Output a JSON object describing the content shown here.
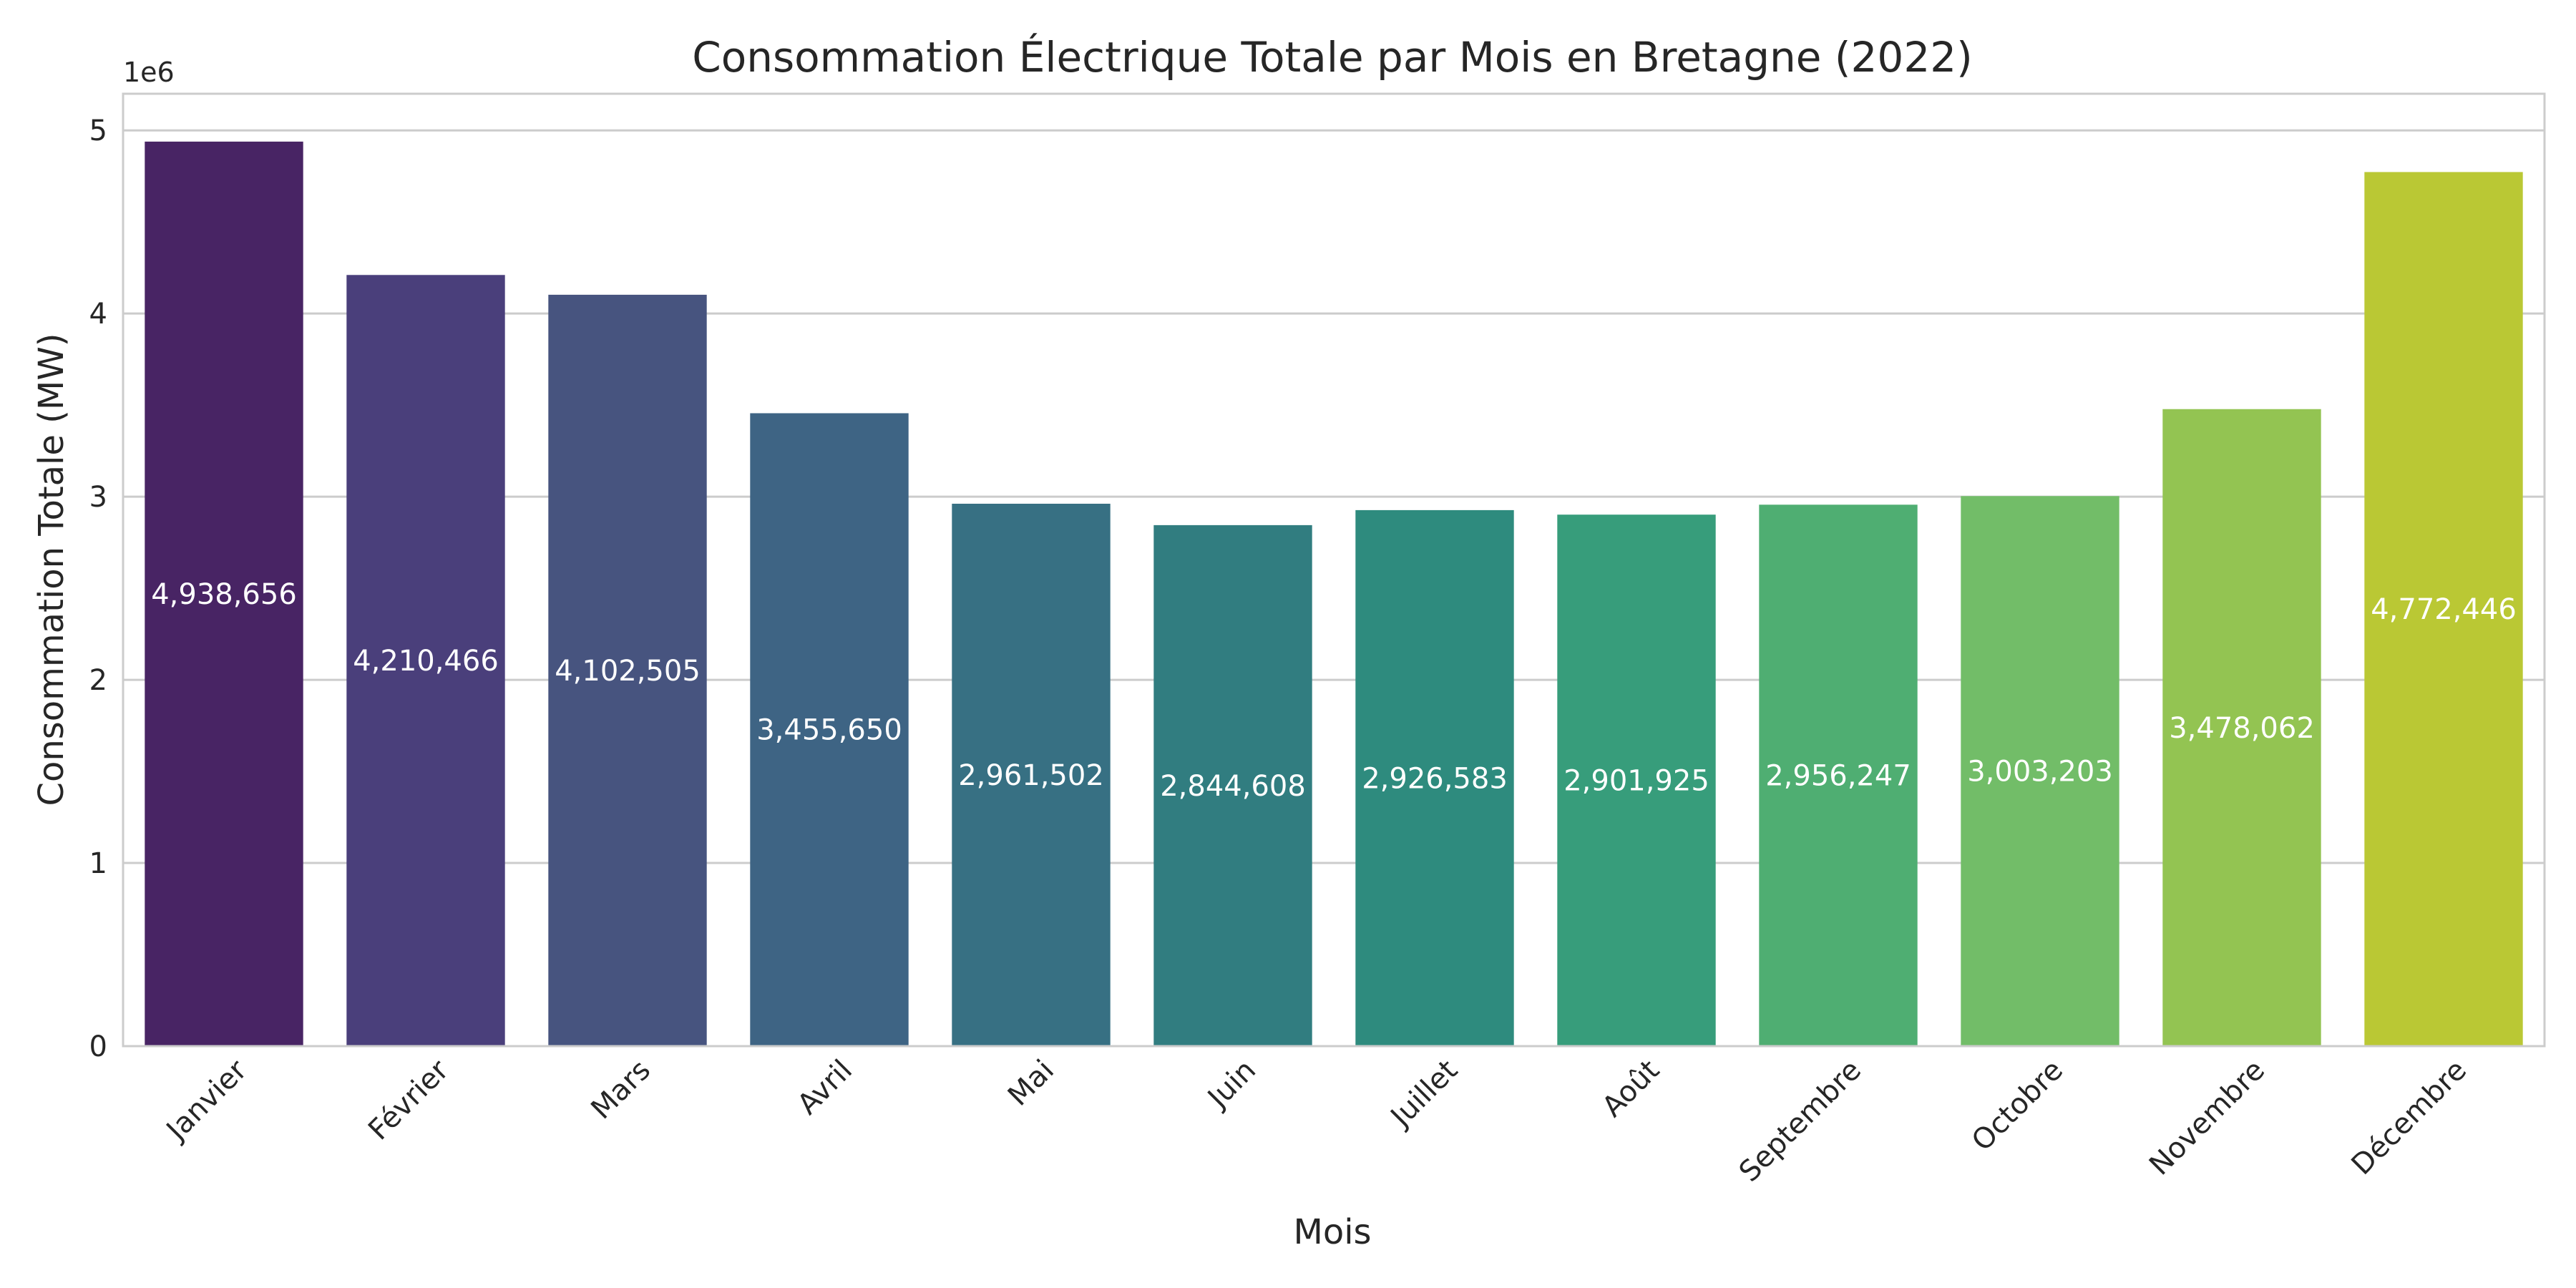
{
  "chart_data": {
    "type": "bar",
    "title": "Consommation Électrique Totale par Mois en Bretagne (2022)",
    "xlabel": "Mois",
    "ylabel": "Consommation Totale (MW)",
    "y_offset_label": "1e6",
    "ylim": [
      0,
      5200000
    ],
    "y_ticks": [
      0,
      1000000,
      2000000,
      3000000,
      4000000,
      5000000
    ],
    "y_tick_labels": [
      "0",
      "1",
      "2",
      "3",
      "4",
      "5"
    ],
    "grid": true,
    "categories": [
      "Janvier",
      "Février",
      "Mars",
      "Avril",
      "Mai",
      "Juin",
      "Juillet",
      "Août",
      "Septembre",
      "Octobre",
      "Novembre",
      "Décembre"
    ],
    "values": [
      4938656,
      4210466,
      4102505,
      3455650,
      2961502,
      2844608,
      2926583,
      2901925,
      2956247,
      3003203,
      3478062,
      4772446
    ],
    "value_labels": [
      "4,938,656",
      "4,210,466",
      "4,102,505",
      "3,455,650",
      "2,961,502",
      "2,844,608",
      "2,926,583",
      "2,901,925",
      "2,956,247",
      "3,003,203",
      "3,478,062",
      "4,772,446"
    ],
    "colors": [
      "#482464",
      "#4a3f7b",
      "#47547f",
      "#3e6484",
      "#377083",
      "#317d80",
      "#2e8b7e",
      "#379d7b",
      "#4fae72",
      "#72bd68",
      "#93c452",
      "#bac834"
    ]
  }
}
